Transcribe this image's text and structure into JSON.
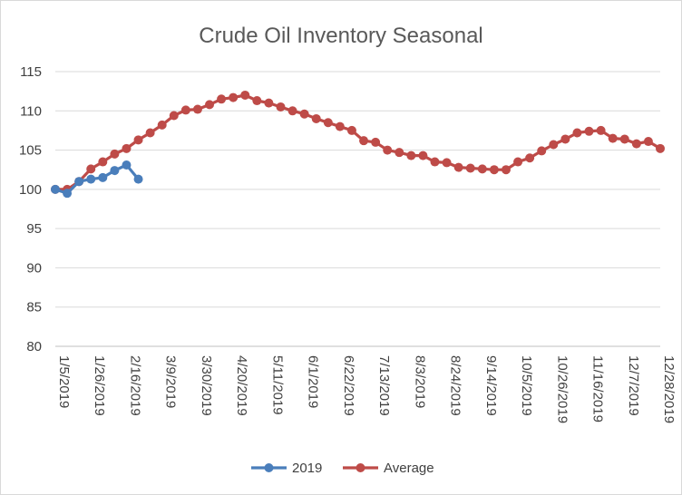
{
  "chart_data": {
    "type": "line",
    "title": "Crude Oil Inventory Seasonal",
    "xlabel": "",
    "ylabel": "",
    "ylim": [
      80,
      115
    ],
    "yticks": [
      "80",
      "85",
      "90",
      "95",
      "100",
      "105",
      "110",
      "115"
    ],
    "x_tick_labels": [
      "1/5/2019",
      "1/26/2019",
      "2/16/2019",
      "3/9/2019",
      "3/30/2019",
      "4/20/2019",
      "5/11/2019",
      "6/1/2019",
      "6/22/2019",
      "7/13/2019",
      "8/3/2019",
      "8/24/2019",
      "9/14/2019",
      "10/5/2019",
      "10/26/2019",
      "11/16/2019",
      "12/7/2019",
      "12/28/2019"
    ],
    "x_count": 52,
    "grid": true,
    "legend": "bottom",
    "series": [
      {
        "name": "2019",
        "color": "#4a7ebb",
        "values": [
          100.0,
          99.5,
          101.0,
          101.3,
          101.5,
          102.4,
          103.1,
          101.3
        ]
      },
      {
        "name": "Average",
        "color": "#be4b48",
        "values": [
          100.0,
          100.0,
          101.0,
          102.6,
          103.5,
          104.5,
          105.2,
          106.3,
          107.2,
          108.2,
          109.4,
          110.1,
          110.2,
          110.8,
          111.5,
          111.7,
          112.0,
          111.3,
          111.0,
          110.5,
          110.0,
          109.6,
          109.0,
          108.5,
          108.0,
          107.5,
          106.2,
          106.0,
          105.0,
          104.7,
          104.3,
          104.3,
          103.5,
          103.4,
          102.8,
          102.7,
          102.6,
          102.5,
          102.5,
          103.5,
          104.0,
          104.9,
          105.7,
          106.4,
          107.2,
          107.4,
          107.5,
          106.5,
          106.4,
          105.8,
          106.1,
          105.2
        ]
      }
    ]
  }
}
